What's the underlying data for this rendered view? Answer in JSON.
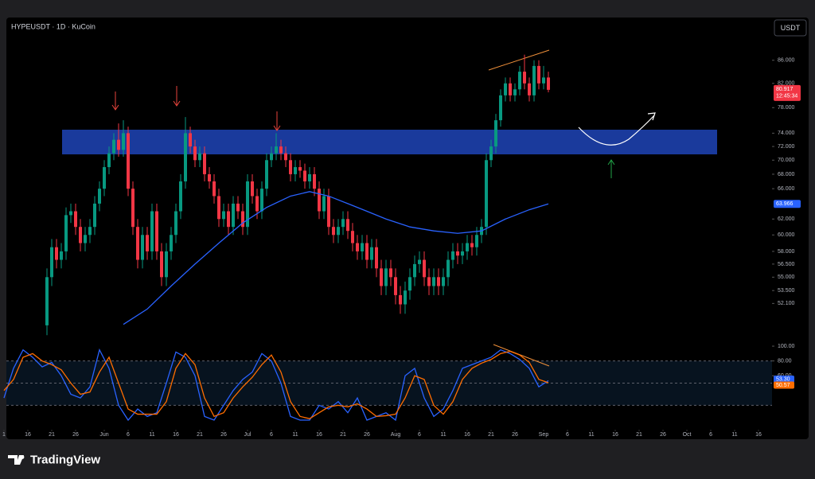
{
  "chart_data": {
    "type": "candlestick",
    "title": "HYPEUSDT · 1D · KuCoin",
    "quote_button": "USDT",
    "up_color": "#089981",
    "down_color": "#f23645",
    "x": [
      9,
      10,
      11,
      12,
      13,
      14,
      15,
      16,
      17,
      18,
      19,
      20,
      21,
      22,
      23,
      24,
      25,
      26,
      27,
      28,
      29,
      30,
      31,
      32,
      33,
      34,
      35,
      36,
      37,
      38,
      39,
      40,
      41,
      42,
      43,
      44,
      45,
      46,
      47,
      48,
      49,
      50,
      51,
      52,
      53,
      54,
      55,
      56,
      57,
      58,
      59,
      60,
      61,
      62,
      63,
      64,
      65,
      66,
      67,
      68,
      69,
      70,
      71,
      72,
      73,
      74,
      75,
      76,
      77,
      78,
      79,
      80,
      81,
      82,
      83,
      84,
      85,
      86,
      87,
      88,
      89,
      90,
      91,
      92,
      93,
      94,
      95,
      96,
      97,
      98,
      99,
      100,
      101,
      102,
      103,
      104,
      105,
      106,
      107,
      108,
      109,
      110,
      111,
      112,
      113,
      114
    ],
    "open": [
      49.8,
      55,
      58.5,
      57,
      58,
      62.5,
      63,
      61,
      59,
      60,
      61,
      64,
      66,
      69,
      71,
      73,
      71.5,
      74,
      66,
      61,
      57,
      60,
      58,
      63,
      58,
      55,
      58,
      60,
      63,
      67,
      74,
      72,
      70,
      71,
      68,
      67,
      65,
      62,
      63,
      61,
      64,
      63,
      61,
      67,
      65,
      63,
      66,
      70,
      71,
      72,
      71,
      70,
      68,
      69,
      68.5,
      67,
      68,
      66,
      63,
      65,
      61,
      60,
      61,
      62,
      60.5,
      59,
      58,
      59,
      57,
      58.5,
      56,
      54,
      56,
      55,
      53,
      52,
      53.5,
      55,
      56.5,
      57,
      55,
      54,
      55,
      54,
      55,
      57,
      58,
      57.5,
      58,
      59,
      58.5,
      60,
      61,
      70,
      72,
      76,
      80,
      82,
      80,
      81,
      84,
      82,
      80,
      85,
      82,
      83
    ],
    "high": [
      56,
      59.5,
      59.5,
      59,
      63.5,
      64,
      64,
      62,
      61,
      62,
      65,
      67,
      70,
      72,
      74,
      75.5,
      76,
      75,
      67,
      62,
      61,
      61,
      64,
      64,
      59,
      59,
      61,
      64,
      68,
      76.5,
      75,
      73,
      72,
      72,
      69,
      68,
      66,
      64,
      64,
      65,
      65,
      64,
      68,
      68,
      66,
      67,
      71,
      72,
      74,
      73,
      72,
      71,
      70,
      70,
      69.5,
      69,
      69,
      67,
      66,
      66,
      62,
      62,
      63,
      63,
      61.5,
      60,
      60,
      60,
      59.5,
      59.5,
      57,
      57,
      57,
      56,
      54,
      54.5,
      56,
      57.5,
      58,
      58,
      56,
      56,
      56,
      56,
      58,
      59,
      59,
      59,
      60,
      60,
      61,
      62,
      71,
      73,
      77,
      81,
      83,
      83,
      82,
      85,
      87,
      83,
      86,
      86,
      85,
      84
    ],
    "low": [
      48.8,
      54,
      56,
      56,
      57,
      61.5,
      60,
      58,
      58,
      59,
      60,
      63,
      65,
      68,
      70,
      70.5,
      70.5,
      65,
      60,
      56,
      56,
      57,
      57,
      57,
      54,
      54,
      57,
      59,
      62,
      66,
      71,
      69,
      69,
      67,
      66,
      64,
      61,
      61,
      60,
      60,
      62,
      60,
      60,
      64,
      62,
      62,
      65,
      69,
      70,
      70,
      69,
      67,
      67,
      67.5,
      66,
      66,
      65,
      62,
      62,
      60,
      59,
      59,
      60,
      59.5,
      58,
      57,
      57,
      56,
      56,
      55,
      53,
      53,
      54,
      52,
      51,
      51,
      52.5,
      54,
      55.5,
      54,
      53,
      53,
      53,
      53,
      54,
      56,
      56.5,
      56.5,
      57,
      57.5,
      57.5,
      59,
      60,
      69,
      71,
      75,
      79,
      79,
      79,
      80,
      81,
      79,
      79,
      81,
      81,
      80.5
    ],
    "close": [
      55,
      58.5,
      57,
      58,
      62.5,
      63,
      61,
      59,
      60,
      61,
      64,
      66,
      69,
      71,
      73,
      71.5,
      74,
      66,
      61,
      57,
      60,
      58,
      63,
      58,
      55,
      58,
      60,
      63,
      67,
      74,
      72,
      70,
      71,
      68,
      67,
      65,
      62,
      63,
      61,
      64,
      63,
      61,
      67,
      65,
      63,
      66,
      70,
      71,
      72,
      71,
      70,
      68,
      69,
      68.5,
      67,
      68,
      66,
      63,
      65,
      61,
      60,
      61,
      62,
      60.5,
      59,
      58,
      59,
      57,
      58.5,
      56,
      54,
      56,
      55,
      53,
      52,
      53.5,
      55,
      56.5,
      57,
      55,
      54,
      55,
      54,
      55,
      57,
      58,
      57.5,
      58,
      59,
      58.5,
      60,
      61,
      70,
      72,
      76,
      80,
      82,
      80,
      81,
      84,
      82,
      80,
      85,
      82,
      83,
      80.917
    ],
    "last_value_label": "80.917",
    "countdown": "12:45:34",
    "log": true,
    "ylim": [
      48.9,
      92.7
    ],
    "yticks": [
      {
        "value": 86,
        "label": "86.000"
      },
      {
        "value": 82,
        "label": "82.000"
      },
      {
        "value": 78,
        "label": "78.000"
      },
      {
        "value": 74,
        "label": "74.000"
      },
      {
        "value": 72,
        "label": "72.000"
      },
      {
        "value": 70,
        "label": "70.000"
      },
      {
        "value": 68,
        "label": "68.000"
      },
      {
        "value": 66,
        "label": "66.000"
      },
      {
        "value": 62,
        "label": "62.000"
      },
      {
        "value": 60,
        "label": "60.000"
      },
      {
        "value": 58,
        "label": "58.000"
      },
      {
        "value": 56.5,
        "label": "56.500"
      },
      {
        "value": 55,
        "label": "55.000"
      },
      {
        "value": 53.5,
        "label": "53.500"
      },
      {
        "value": 52.1,
        "label": "52.100"
      }
    ],
    "xlim": [
      0,
      160.83
    ],
    "xticks": [
      {
        "value": 0,
        "label": "1"
      },
      {
        "value": 5,
        "label": "16"
      },
      {
        "value": 10,
        "label": "21"
      },
      {
        "value": 15,
        "label": "26"
      },
      {
        "value": 21,
        "label": "Jun"
      },
      {
        "value": 26,
        "label": "6"
      },
      {
        "value": 31,
        "label": "11"
      },
      {
        "value": 36,
        "label": "16"
      },
      {
        "value": 41,
        "label": "21"
      },
      {
        "value": 46,
        "label": "26"
      },
      {
        "value": 51,
        "label": "Jul"
      },
      {
        "value": 56,
        "label": "6"
      },
      {
        "value": 61,
        "label": "11"
      },
      {
        "value": 66,
        "label": "16"
      },
      {
        "value": 71,
        "label": "21"
      },
      {
        "value": 76,
        "label": "26"
      },
      {
        "value": 82,
        "label": "Aug"
      },
      {
        "value": 87,
        "label": "6"
      },
      {
        "value": 92,
        "label": "11"
      },
      {
        "value": 97,
        "label": "16"
      },
      {
        "value": 102,
        "label": "21"
      },
      {
        "value": 107,
        "label": "26"
      },
      {
        "value": 113,
        "label": "Sep"
      },
      {
        "value": 118,
        "label": "6"
      },
      {
        "value": 123,
        "label": "11"
      },
      {
        "value": 128,
        "label": "16"
      },
      {
        "value": 133,
        "label": "21"
      },
      {
        "value": 138,
        "label": "26"
      },
      {
        "value": 143,
        "label": "Oct"
      },
      {
        "value": 148,
        "label": "6"
      },
      {
        "value": 153,
        "label": "11"
      },
      {
        "value": 158,
        "label": "16"
      }
    ],
    "ma": {
      "color": "#2962ff",
      "x": [
        25,
        30,
        35,
        40,
        45,
        50,
        55,
        60,
        64,
        68,
        72,
        76,
        80,
        85,
        90,
        95,
        100,
        105,
        110,
        114
      ],
      "values": [
        49.9,
        51.5,
        54,
        56.5,
        59,
        61.5,
        63.5,
        65,
        65.6,
        65,
        64,
        63,
        62,
        61,
        60.5,
        60.2,
        60.5,
        62,
        63.2,
        63.966
      ],
      "last_value_label": "63.966"
    },
    "indicator": {
      "type": "line",
      "ylim": [
        -12.9,
        110.8
      ],
      "yticks": [
        {
          "value": 100,
          "label": "100.00"
        },
        {
          "value": 80,
          "label": "80.00"
        },
        {
          "value": 60,
          "label": "60.00"
        }
      ],
      "bands": [
        20,
        50,
        80
      ],
      "series": [
        {
          "color": "#2962ff",
          "x": [
            0,
            2,
            4,
            6,
            8,
            10,
            12,
            14,
            16,
            18,
            20,
            22,
            24,
            26,
            28,
            30,
            32,
            34,
            36,
            38,
            40,
            42,
            44,
            46,
            48,
            50,
            52,
            54,
            56,
            58,
            60,
            62,
            64,
            66,
            68,
            70,
            72,
            74,
            76,
            78,
            80,
            82,
            84,
            86,
            88,
            90,
            92,
            94,
            96,
            98,
            100,
            102,
            104,
            106,
            108,
            110,
            112,
            114
          ],
          "values": [
            30,
            70,
            95,
            85,
            72,
            78,
            60,
            35,
            30,
            45,
            95,
            70,
            20,
            0,
            15,
            5,
            10,
            50,
            92,
            85,
            60,
            5,
            0,
            20,
            40,
            55,
            65,
            90,
            80,
            50,
            5,
            0,
            0,
            20,
            15,
            25,
            10,
            30,
            0,
            5,
            10,
            0,
            60,
            70,
            30,
            5,
            15,
            40,
            70,
            75,
            80,
            85,
            95,
            90,
            82,
            70,
            45,
            53.3
          ],
          "last_value_label": "53.30"
        },
        {
          "color": "#ff6d00",
          "x": [
            0,
            2,
            4,
            6,
            8,
            10,
            12,
            14,
            16,
            18,
            20,
            22,
            24,
            26,
            28,
            30,
            32,
            34,
            36,
            38,
            40,
            42,
            44,
            46,
            48,
            50,
            52,
            54,
            56,
            58,
            60,
            62,
            64,
            66,
            68,
            70,
            72,
            74,
            76,
            78,
            80,
            82,
            84,
            86,
            88,
            90,
            92,
            94,
            96,
            98,
            100,
            102,
            104,
            106,
            108,
            110,
            112,
            114
          ],
          "values": [
            40,
            55,
            85,
            90,
            80,
            75,
            68,
            50,
            35,
            38,
            65,
            85,
            50,
            15,
            8,
            8,
            8,
            25,
            70,
            90,
            75,
            30,
            5,
            10,
            30,
            45,
            58,
            75,
            88,
            65,
            25,
            5,
            2,
            10,
            18,
            20,
            18,
            22,
            15,
            5,
            6,
            8,
            30,
            60,
            55,
            20,
            8,
            25,
            55,
            70,
            77,
            82,
            90,
            93,
            88,
            78,
            55,
            50.57
          ],
          "last_value_label": "50.57"
        }
      ]
    }
  },
  "brand": "TradingView"
}
